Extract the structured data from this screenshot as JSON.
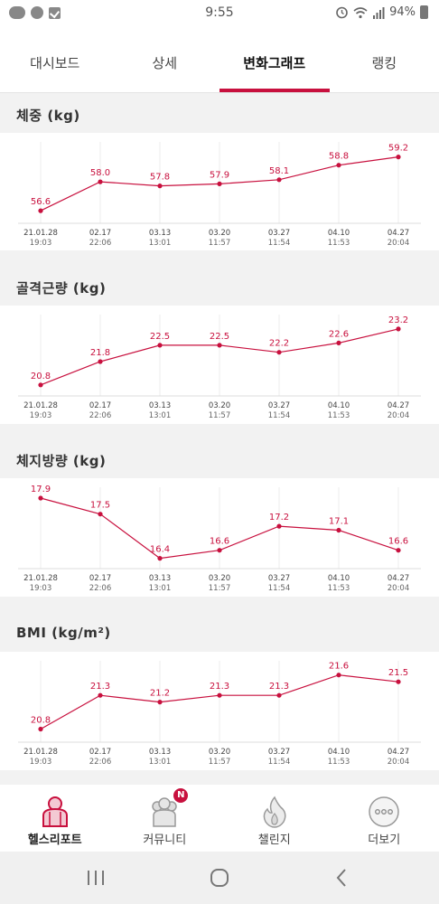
{
  "status_bar": {
    "time": "9:55",
    "battery": "94%",
    "left_icons": [
      "kakaotalk-icon",
      "chat-bubble-icon",
      "checkbox-icon"
    ],
    "right_icons": [
      "alarm-icon",
      "wifi-icon",
      "signal-icon",
      "battery-icon"
    ]
  },
  "tabs": [
    {
      "label": "대시보드",
      "active": false
    },
    {
      "label": "상세",
      "active": false
    },
    {
      "label": "변화그래프",
      "active": true
    },
    {
      "label": "랭킹",
      "active": false
    }
  ],
  "accent_color": "#c8103e",
  "sections": {
    "weight": {
      "title": "체중 (kg)"
    },
    "muscle": {
      "title": "골격근량 (kg)"
    },
    "fat": {
      "title": "체지방량 (kg)"
    },
    "bmi": {
      "title": "BMI (kg/m²)"
    }
  },
  "chart_data": [
    {
      "type": "line",
      "title": "체중 (kg)",
      "x": [
        "21.01.28 19:03",
        "02.17 22:06",
        "03.13 13:01",
        "03.20 11:57",
        "03.27 11:54",
        "04.10 11:53",
        "04.27 20:04"
      ],
      "dates": [
        "21.01.28",
        "02.17",
        "03.13",
        "03.20",
        "03.27",
        "04.10",
        "04.27"
      ],
      "times": [
        "19:03",
        "22:06",
        "13:01",
        "11:57",
        "11:54",
        "11:53",
        "20:04"
      ],
      "series": [
        {
          "values": [
            56.6,
            58.0,
            57.8,
            57.9,
            58.1,
            58.8,
            59.2
          ]
        }
      ],
      "ylim": [
        56.3,
        59.4
      ]
    },
    {
      "type": "line",
      "title": "골격근량 (kg)",
      "x": [
        "21.01.28 19:03",
        "02.17 22:06",
        "03.13 13:01",
        "03.20 11:57",
        "03.27 11:54",
        "04.10 11:53",
        "04.27 20:04"
      ],
      "dates": [
        "21.01.28",
        "02.17",
        "03.13",
        "03.20",
        "03.27",
        "04.10",
        "04.27"
      ],
      "times": [
        "19:03",
        "22:06",
        "13:01",
        "11:57",
        "11:54",
        "11:53",
        "20:04"
      ],
      "series": [
        {
          "values": [
            20.8,
            21.8,
            22.5,
            22.5,
            22.2,
            22.6,
            23.2
          ]
        }
      ],
      "ylim": [
        20.6,
        23.35
      ]
    },
    {
      "type": "line",
      "title": "체지방량 (kg)",
      "x": [
        "21.01.28 19:03",
        "02.17 22:06",
        "03.13 13:01",
        "03.20 11:57",
        "03.27 11:54",
        "04.10 11:53",
        "04.27 20:04"
      ],
      "dates": [
        "21.01.28",
        "02.17",
        "03.13",
        "03.20",
        "03.27",
        "04.10",
        "04.27"
      ],
      "times": [
        "19:03",
        "22:06",
        "13:01",
        "11:57",
        "11:54",
        "11:53",
        "20:04"
      ],
      "series": [
        {
          "values": [
            17.9,
            17.5,
            16.4,
            16.6,
            17.2,
            17.1,
            16.6
          ]
        }
      ],
      "ylim": [
        16.3,
        17.9
      ]
    },
    {
      "type": "line",
      "title": "BMI (kg/m²)",
      "x": [
        "21.01.28 19:03",
        "02.17 22:06",
        "03.13 13:01",
        "03.20 11:57",
        "03.27 11:54",
        "04.10 11:53",
        "04.27 20:04"
      ],
      "dates": [
        "21.01.28",
        "02.17",
        "03.13",
        "03.20",
        "03.27",
        "04.10",
        "04.27"
      ],
      "times": [
        "19:03",
        "22:06",
        "13:01",
        "11:57",
        "11:54",
        "11:53",
        "20:04"
      ],
      "series": [
        {
          "values": [
            20.8,
            21.3,
            21.2,
            21.3,
            21.3,
            21.6,
            21.5
          ]
        }
      ],
      "ylim": [
        20.7,
        21.65
      ]
    }
  ],
  "bottom_nav": [
    {
      "label": "헬스리포트",
      "icon": "health-report-icon",
      "active": true
    },
    {
      "label": "커뮤니티",
      "icon": "community-icon",
      "active": false,
      "badge": "N"
    },
    {
      "label": "챌린지",
      "icon": "flame-icon",
      "active": false
    },
    {
      "label": "더보기",
      "icon": "more-icon",
      "active": false
    }
  ],
  "system_nav": [
    "recent-apps-icon",
    "home-icon",
    "back-icon"
  ]
}
